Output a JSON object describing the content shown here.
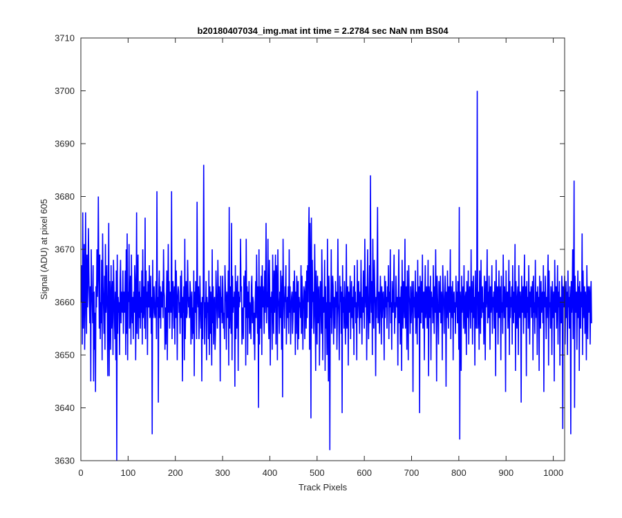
{
  "chart_data": {
    "type": "line",
    "title": "b20180407034_img.mat int time = 2.2784 sec  NaN nm BS04",
    "xlabel": "Track Pixels",
    "ylabel": "Signal (ADU) at pixel 605",
    "xlim": [
      0,
      1024
    ],
    "ylim": [
      3630,
      3710
    ],
    "xticks": [
      0,
      100,
      200,
      300,
      400,
      500,
      600,
      700,
      800,
      900,
      1000
    ],
    "yticks": [
      3630,
      3640,
      3650,
      3660,
      3670,
      3680,
      3690,
      3700,
      3710
    ],
    "grid": false,
    "legend": "none",
    "series": [
      {
        "color": "#0000ff",
        "x_start": 1,
        "x_step": 1,
        "values": [
          3660,
          3667,
          3652,
          3677,
          3655,
          3663,
          3671,
          3651,
          3658,
          3677,
          3662,
          3654,
          3669,
          3659,
          3663,
          3674,
          3666,
          3660,
          3656,
          3663,
          3645,
          3670,
          3662,
          3660,
          3656,
          3667,
          3645,
          3662,
          3651,
          3658,
          3643,
          3663,
          3659,
          3670,
          3661,
          3666,
          3680,
          3664,
          3655,
          3669,
          3653,
          3660,
          3656,
          3668,
          3649,
          3673,
          3663,
          3659,
          3654,
          3665,
          3651,
          3671,
          3658,
          3661,
          3667,
          3657,
          3646,
          3662,
          3675,
          3646,
          3664,
          3659,
          3651,
          3667,
          3655,
          3660,
          3664,
          3650,
          3668,
          3663,
          3657,
          3653,
          3662,
          3649,
          3666,
          3630,
          3669,
          3654,
          3661,
          3658,
          3660,
          3650,
          3664,
          3668,
          3656,
          3662,
          3659,
          3658,
          3666,
          3654,
          3662,
          3658,
          3659,
          3666,
          3650,
          3670,
          3654,
          3673,
          3649,
          3662,
          3660,
          3671,
          3655,
          3658,
          3665,
          3652,
          3669,
          3660,
          3656,
          3661,
          3653,
          3662,
          3658,
          3667,
          3664,
          3649,
          3659,
          3677,
          3654,
          3663,
          3669,
          3653,
          3662,
          3657,
          3664,
          3655,
          3661,
          3658,
          3666,
          3652,
          3670,
          3657,
          3660,
          3663,
          3655,
          3676,
          3653,
          3666,
          3659,
          3662,
          3650,
          3664,
          3660,
          3659,
          3667,
          3657,
          3658,
          3665,
          3654,
          3661,
          3635,
          3668,
          3657,
          3661,
          3663,
          3658,
          3657,
          3660,
          3664,
          3653,
          3681,
          3659,
          3661,
          3641,
          3662,
          3666,
          3657,
          3663,
          3655,
          3662,
          3660,
          3659,
          3664,
          3657,
          3670,
          3662,
          3661,
          3651,
          3659,
          3652,
          3660,
          3666,
          3649,
          3660,
          3671,
          3658,
          3664,
          3655,
          3662,
          3661,
          3658,
          3681,
          3653,
          3661,
          3664,
          3660,
          3655,
          3663,
          3652,
          3668,
          3657,
          3666,
          3660,
          3649,
          3661,
          3663,
          3662,
          3658,
          3660,
          3654,
          3665,
          3657,
          3666,
          3660,
          3645,
          3661,
          3658,
          3663,
          3649,
          3672,
          3653,
          3660,
          3664,
          3657,
          3658,
          3668,
          3662,
          3659,
          3661,
          3657,
          3664,
          3662,
          3652,
          3660,
          3662,
          3653,
          3659,
          3654,
          3666,
          3646,
          3662,
          3658,
          3664,
          3660,
          3653,
          3679,
          3661,
          3659,
          3663,
          3653,
          3657,
          3665,
          3660,
          3655,
          3660,
          3645,
          3661,
          3653,
          3662,
          3686,
          3663,
          3652,
          3660,
          3657,
          3664,
          3649,
          3661,
          3658,
          3660,
          3653,
          3666,
          3650,
          3663,
          3654,
          3662,
          3657,
          3648,
          3670,
          3656,
          3663,
          3652,
          3660,
          3661,
          3651,
          3654,
          3666,
          3662,
          3658,
          3655,
          3668,
          3662,
          3657,
          3663,
          3660,
          3645,
          3665,
          3658,
          3661,
          3656,
          3665,
          3660,
          3655,
          3658,
          3653,
          3667,
          3663,
          3660,
          3651,
          3662,
          3658,
          3657,
          3666,
          3648,
          3678,
          3655,
          3660,
          3663,
          3654,
          3675,
          3649,
          3665,
          3658,
          3661,
          3659,
          3662,
          3644,
          3667,
          3653,
          3664,
          3655,
          3660,
          3665,
          3647,
          3662,
          3659,
          3661,
          3660,
          3672,
          3662,
          3663,
          3652,
          3659,
          3657,
          3653,
          3665,
          3659,
          3660,
          3666,
          3648,
          3672,
          3657,
          3663,
          3650,
          3662,
          3657,
          3664,
          3654,
          3660,
          3658,
          3653,
          3663,
          3665,
          3656,
          3661,
          3660,
          3652,
          3658,
          3649,
          3660,
          3664,
          3657,
          3669,
          3661,
          3654,
          3663,
          3640,
          3670,
          3652,
          3663,
          3655,
          3661,
          3665,
          3650,
          3667,
          3659,
          3663,
          3660,
          3654,
          3666,
          3658,
          3661,
          3675,
          3656,
          3662,
          3659,
          3672,
          3657,
          3653,
          3668,
          3661,
          3648,
          3661,
          3658,
          3662,
          3651,
          3669,
          3660,
          3654,
          3666,
          3658,
          3662,
          3669,
          3652,
          3667,
          3663,
          3649,
          3670,
          3661,
          3659,
          3654,
          3662,
          3657,
          3666,
          3660,
          3651,
          3665,
          3642,
          3672,
          3662,
          3659,
          3655,
          3663,
          3660,
          3667,
          3652,
          3658,
          3661,
          3657,
          3663,
          3654,
          3670,
          3658,
          3663,
          3652,
          3659,
          3661,
          3662,
          3654,
          3657,
          3664,
          3658,
          3666,
          3661,
          3650,
          3662,
          3654,
          3665,
          3662,
          3651,
          3664,
          3653,
          3661,
          3659,
          3660,
          3657,
          3667,
          3654,
          3665,
          3660,
          3651,
          3659,
          3663,
          3662,
          3653,
          3661,
          3664,
          3655,
          3666,
          3657,
          3667,
          3660,
          3672,
          3678,
          3651,
          3675,
          3666,
          3638,
          3676,
          3655,
          3668,
          3660,
          3662,
          3654,
          3658,
          3671,
          3660,
          3647,
          3666,
          3659,
          3652,
          3665,
          3656,
          3661,
          3663,
          3648,
          3657,
          3664,
          3660,
          3654,
          3670,
          3663,
          3649,
          3661,
          3658,
          3660,
          3668,
          3647,
          3663,
          3655,
          3660,
          3650,
          3672,
          3658,
          3645,
          3665,
          3660,
          3632,
          3660,
          3657,
          3670,
          3654,
          3659,
          3665,
          3663,
          3652,
          3661,
          3660,
          3655,
          3664,
          3659,
          3662,
          3651,
          3658,
          3672,
          3660,
          3657,
          3649,
          3665,
          3660,
          3663,
          3654,
          3662,
          3639,
          3667,
          3658,
          3661,
          3655,
          3664,
          3660,
          3652,
          3659,
          3671,
          3655,
          3660,
          3663,
          3648,
          3662,
          3658,
          3659,
          3665,
          3653,
          3660,
          3664,
          3657,
          3661,
          3655,
          3663,
          3650,
          3667,
          3659,
          3662,
          3656,
          3660,
          3649,
          3668,
          3657,
          3661,
          3664,
          3659,
          3654,
          3662,
          3657,
          3668,
          3660,
          3652,
          3661,
          3658,
          3666,
          3660,
          3655,
          3672,
          3662,
          3659,
          3663,
          3649,
          3661,
          3670,
          3658,
          3653,
          3660,
          3667,
          3656,
          3684,
          3662,
          3658,
          3664,
          3650,
          3672,
          3660,
          3655,
          3668,
          3663,
          3659,
          3646,
          3661,
          3657,
          3666,
          3678,
          3656,
          3660,
          3662,
          3654,
          3659,
          3665,
          3660,
          3652,
          3663,
          3657,
          3661,
          3662,
          3658,
          3649,
          3665,
          3657,
          3664,
          3659,
          3661,
          3655,
          3663,
          3660,
          3667,
          3653,
          3662,
          3659,
          3670,
          3656,
          3660,
          3651,
          3664,
          3660,
          3658,
          3663,
          3669,
          3654,
          3660,
          3657,
          3665,
          3660,
          3659,
          3661,
          3648,
          3662,
          3670,
          3656,
          3661,
          3652,
          3660,
          3663,
          3647,
          3668,
          3659,
          3655,
          3664,
          3661,
          3657,
          3672,
          3655,
          3660,
          3663,
          3651,
          3666,
          3659,
          3649,
          3667,
          3661,
          3660,
          3654,
          3663,
          3656,
          3659,
          3664,
          3660,
          3643,
          3664,
          3659,
          3661,
          3657,
          3666,
          3654,
          3662,
          3660,
          3652,
          3668,
          3657,
          3661,
          3663,
          3639,
          3665,
          3660,
          3656,
          3664,
          3658,
          3669,
          3655,
          3660,
          3662,
          3649,
          3661,
          3667,
          3657,
          3660,
          3663,
          3655,
          3659,
          3668,
          3646,
          3663,
          3660,
          3657,
          3665,
          3649,
          3662,
          3659,
          3661,
          3656,
          3667,
          3660,
          3654,
          3663,
          3658,
          3670,
          3660,
          3645,
          3665,
          3661,
          3657,
          3652,
          3664,
          3660,
          3658,
          3665,
          3656,
          3662,
          3660,
          3649,
          3667,
          3663,
          3659,
          3654,
          3661,
          3665,
          3660,
          3644,
          3662,
          3657,
          3666,
          3660,
          3655,
          3663,
          3661,
          3658,
          3670,
          3653,
          3663,
          3660,
          3657,
          3664,
          3649,
          3661,
          3662,
          3658,
          3660,
          3654,
          3665,
          3659,
          3662,
          3656,
          3664,
          3660,
          3651,
          3678,
          3634,
          3662,
          3660,
          3647,
          3665,
          3658,
          3661,
          3663,
          3655,
          3667,
          3659,
          3654,
          3661,
          3662,
          3650,
          3664,
          3660,
          3657,
          3666,
          3652,
          3661,
          3663,
          3659,
          3655,
          3670,
          3658,
          3664,
          3652,
          3660,
          3665,
          3657,
          3661,
          3648,
          3666,
          3660,
          3655,
          3663,
          3700,
          3655,
          3659,
          3662,
          3651,
          3666,
          3660,
          3654,
          3668,
          3657,
          3661,
          3663,
          3658,
          3660,
          3652,
          3665,
          3660,
          3649,
          3664,
          3659,
          3661,
          3670,
          3656,
          3662,
          3657,
          3665,
          3660,
          3651,
          3663,
          3658,
          3660,
          3667,
          3654,
          3661,
          3659,
          3662,
          3655,
          3664,
          3660,
          3646,
          3668,
          3658,
          3661,
          3663,
          3652,
          3660,
          3666,
          3657,
          3661,
          3663,
          3649,
          3665,
          3658,
          3660,
          3654,
          3669,
          3661,
          3657,
          3663,
          3660,
          3643,
          3666,
          3659,
          3661,
          3662,
          3655,
          3660,
          3668,
          3650,
          3664,
          3657,
          3661,
          3659,
          3663,
          3652,
          3667,
          3660,
          3656,
          3662,
          3658,
          3671,
          3647,
          3664,
          3660,
          3655,
          3661,
          3663,
          3650,
          3667,
          3659,
          3657,
          3662,
          3660,
          3641,
          3665,
          3660,
          3658,
          3663,
          3654,
          3661,
          3669,
          3657,
          3660,
          3663,
          3646,
          3664,
          3658,
          3661,
          3655,
          3667,
          3660,
          3652,
          3662,
          3659,
          3663,
          3657,
          3661,
          3664,
          3649,
          3665,
          3658,
          3660,
          3654,
          3668,
          3660,
          3657,
          3662,
          3650,
          3663,
          3659,
          3661,
          3647,
          3665,
          3660,
          3655,
          3664,
          3658,
          3661,
          3662,
          3656,
          3667,
          3643,
          3662,
          3659,
          3665,
          3660,
          3653,
          3661,
          3657,
          3664,
          3669,
          3648,
          3666,
          3659,
          3660,
          3655,
          3663,
          3661,
          3650,
          3664,
          3657,
          3660,
          3662,
          3645,
          3668,
          3661,
          3658,
          3663,
          3655,
          3660,
          3667,
          3652,
          3662,
          3659,
          3664,
          3648,
          3661,
          3660,
          3656,
          3665,
          3662,
          3636,
          3663,
          3659,
          3661,
          3665,
          3652,
          3660,
          3664,
          3657,
          3662,
          3650,
          3666,
          3659,
          3661,
          3655,
          3663,
          3660,
          3635,
          3664,
          3658,
          3661,
          3670,
          3653,
          3663,
          3683,
          3640,
          3665,
          3661,
          3658,
          3662,
          3651,
          3660,
          3666,
          3657,
          3663,
          3647,
          3664,
          3660,
          3655,
          3662,
          3659,
          3673,
          3650,
          3666,
          3661,
          3657,
          3663,
          3654,
          3662,
          3660,
          3649,
          3667,
          3660,
          3653,
          3663,
          3658,
          3661,
          3663,
          3652,
          3660,
          3664,
          3656
        ]
      }
    ]
  }
}
